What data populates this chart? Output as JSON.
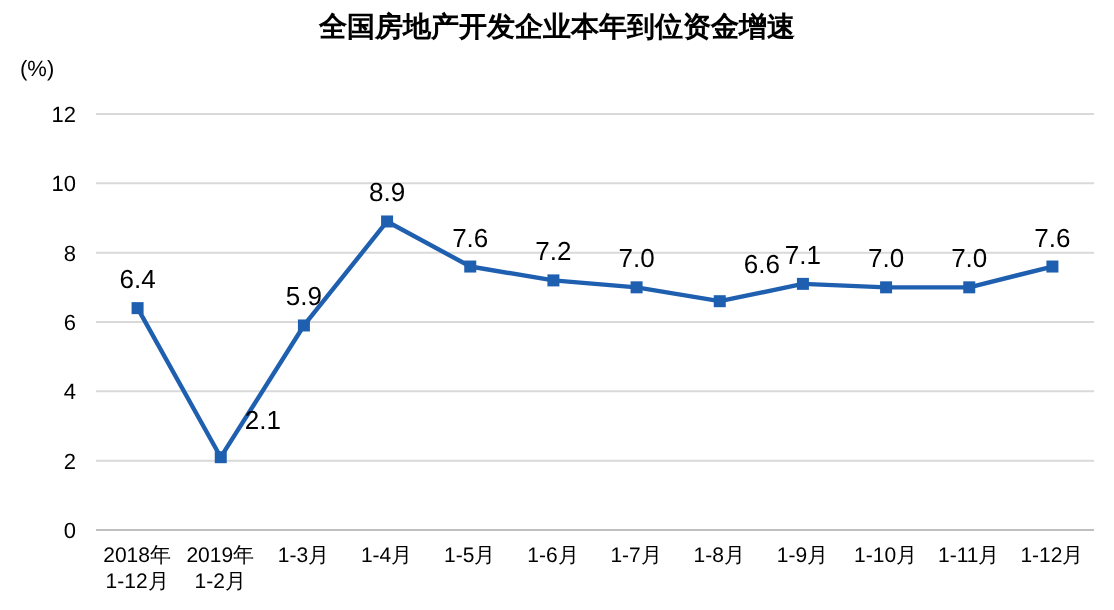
{
  "chart_data": {
    "type": "line",
    "title": "全国房地产开发企业本年到位资金增速",
    "ylabel": "(%)",
    "categories": [
      "2018年\n1-12月",
      "2019年\n1-2月",
      "1-3月",
      "1-4月",
      "1-5月",
      "1-6月",
      "1-7月",
      "1-8月",
      "1-9月",
      "1-10月",
      "1-11月",
      "1-12月"
    ],
    "series": [
      {
        "color": "#1f5fb0",
        "values": [
          6.4,
          2.1,
          5.9,
          8.9,
          7.6,
          7.2,
          7.0,
          6.6,
          7.1,
          7.0,
          7.0,
          7.6
        ]
      }
    ],
    "ylim": [
      0,
      12
    ],
    "yticks": [
      0,
      2,
      4,
      6,
      8,
      10,
      12
    ],
    "grid": "y",
    "marker": "square",
    "line_style": "solid",
    "value_labels": [
      "6.4",
      "2.1",
      "5.9",
      "8.9",
      "7.6",
      "7.2",
      "7.0",
      "6.6",
      "7.1",
      "7.0",
      "7.0",
      "7.6"
    ]
  }
}
